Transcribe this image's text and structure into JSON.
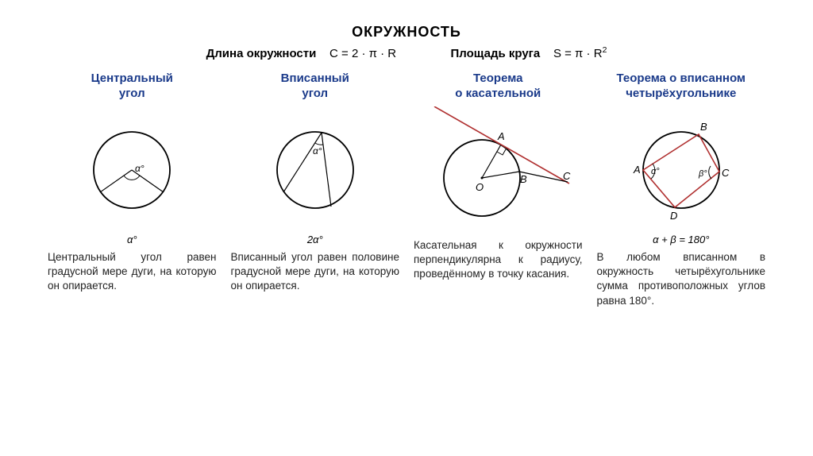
{
  "title": "ОКРУЖНОСТЬ",
  "formula_row": {
    "circumference_label": "Длина окружности",
    "circumference_formula": "C = 2 · π · R",
    "area_label": "Площадь круга",
    "area_formula_prefix": "S = π · R",
    "area_formula_exp": "2"
  },
  "columns": [
    {
      "title": "Центральный\nугол",
      "caption": "α°",
      "desc": "Центральный угол равен градусной мере дуги, на которую он опирается."
    },
    {
      "title": "Вписанный\nугол",
      "caption": "2α°",
      "desc": "Вписанный угол равен половине градусной мере дуги, на которую он опирается."
    },
    {
      "title": "Теорема\nо касательной",
      "caption": "",
      "desc": "Касательная к окружности перпендикулярна к радиусу, проведённому в точку касания."
    },
    {
      "title": "Теорема о вписанном\nчетырёхугольнике",
      "caption": "α + β = 180°",
      "desc": "В любом вписанном в окружность четырёхугольнике сумма противоположных углов равна 180°."
    }
  ],
  "style": {
    "title_color": "#1a3a8a",
    "stroke": "#000000",
    "inscribed_shape_color": "#b03030",
    "tangent_line_color": "#b03030",
    "stroke_width": 1.8,
    "thin_stroke": 1.2,
    "circle_r": 48
  },
  "labels": {
    "alpha": "α°",
    "beta": "β°",
    "A": "A",
    "B": "B",
    "C": "C",
    "D": "D",
    "O": "O"
  }
}
